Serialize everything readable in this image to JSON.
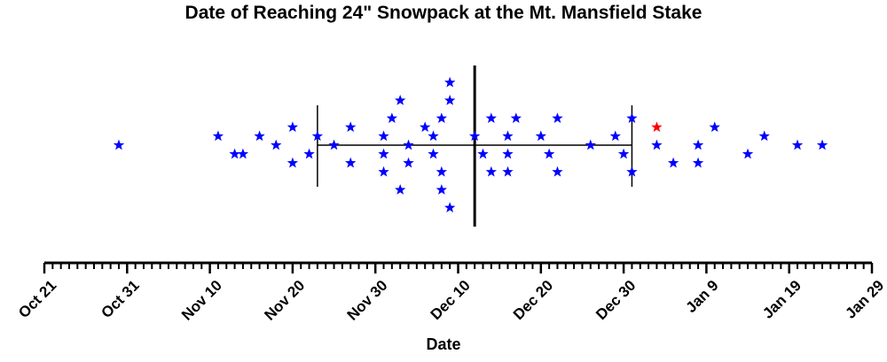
{
  "chart_data": {
    "type": "scatter",
    "title": "Date of Reaching 24\" Snowpack at the Mt. Mansfield Stake",
    "xlabel": "Date",
    "ylabel": "",
    "x_axis": {
      "start": "Oct 21",
      "ticks": [
        "Oct 21",
        "Oct 31",
        "Nov 10",
        "Nov 20",
        "Nov 30",
        "Dec 10",
        "Dec 20",
        "Dec 30",
        "Jan 9",
        "Jan 19",
        "Jan 29"
      ],
      "major_interval_days": 10,
      "minor_interval_days": 1,
      "range_days": [
        0,
        100
      ]
    },
    "summary": {
      "mean": "Dec 12",
      "lower": "Nov 23",
      "upper": "Dec 31"
    },
    "colors": {
      "points": "#0000ff",
      "highlight": "#ff0000",
      "lines": "#000000"
    },
    "marker": "star",
    "points": [
      {
        "date": "Oct 30",
        "lane": 0
      },
      {
        "date": "Nov 11",
        "lane": 1
      },
      {
        "date": "Nov 13",
        "lane": -1
      },
      {
        "date": "Nov 14",
        "lane": -1
      },
      {
        "date": "Nov 16",
        "lane": 1
      },
      {
        "date": "Nov 18",
        "lane": 0
      },
      {
        "date": "Nov 20",
        "lane": 2
      },
      {
        "date": "Nov 20",
        "lane": -2
      },
      {
        "date": "Nov 22",
        "lane": -1
      },
      {
        "date": "Nov 23",
        "lane": 1
      },
      {
        "date": "Nov 25",
        "lane": 0
      },
      {
        "date": "Nov 27",
        "lane": 2
      },
      {
        "date": "Nov 27",
        "lane": -2
      },
      {
        "date": "Dec 1",
        "lane": 1
      },
      {
        "date": "Dec 1",
        "lane": -1
      },
      {
        "date": "Dec 1",
        "lane": -3
      },
      {
        "date": "Dec 2",
        "lane": 3
      },
      {
        "date": "Dec 3",
        "lane": 5
      },
      {
        "date": "Dec 3",
        "lane": -5
      },
      {
        "date": "Dec 4",
        "lane": 0
      },
      {
        "date": "Dec 4",
        "lane": -2
      },
      {
        "date": "Dec 6",
        "lane": 2
      },
      {
        "date": "Dec 7",
        "lane": 1
      },
      {
        "date": "Dec 7",
        "lane": -1
      },
      {
        "date": "Dec 8",
        "lane": 3
      },
      {
        "date": "Dec 8",
        "lane": -3
      },
      {
        "date": "Dec 8",
        "lane": -5
      },
      {
        "date": "Dec 9",
        "lane": 7
      },
      {
        "date": "Dec 9",
        "lane": 5
      },
      {
        "date": "Dec 9",
        "lane": -7
      },
      {
        "date": "Dec 12",
        "lane": 1
      },
      {
        "date": "Dec 13",
        "lane": -1
      },
      {
        "date": "Dec 14",
        "lane": 3
      },
      {
        "date": "Dec 14",
        "lane": -3
      },
      {
        "date": "Dec 16",
        "lane": 1
      },
      {
        "date": "Dec 16",
        "lane": -1
      },
      {
        "date": "Dec 16",
        "lane": -3
      },
      {
        "date": "Dec 17",
        "lane": 3
      },
      {
        "date": "Dec 20",
        "lane": 1
      },
      {
        "date": "Dec 21",
        "lane": -1
      },
      {
        "date": "Dec 22",
        "lane": 3
      },
      {
        "date": "Dec 22",
        "lane": -3
      },
      {
        "date": "Dec 26",
        "lane": 0
      },
      {
        "date": "Dec 29",
        "lane": 1
      },
      {
        "date": "Dec 30",
        "lane": -1
      },
      {
        "date": "Dec 31",
        "lane": 3
      },
      {
        "date": "Dec 31",
        "lane": -3
      },
      {
        "date": "Jan 3",
        "lane": 2,
        "highlight": true
      },
      {
        "date": "Jan 3",
        "lane": 0
      },
      {
        "date": "Jan 5",
        "lane": -2
      },
      {
        "date": "Jan 8",
        "lane": 0
      },
      {
        "date": "Jan 8",
        "lane": -2
      },
      {
        "date": "Jan 10",
        "lane": 2
      },
      {
        "date": "Jan 14",
        "lane": -1
      },
      {
        "date": "Jan 16",
        "lane": 1
      },
      {
        "date": "Jan 20",
        "lane": 0
      },
      {
        "date": "Jan 23",
        "lane": 0
      }
    ]
  }
}
